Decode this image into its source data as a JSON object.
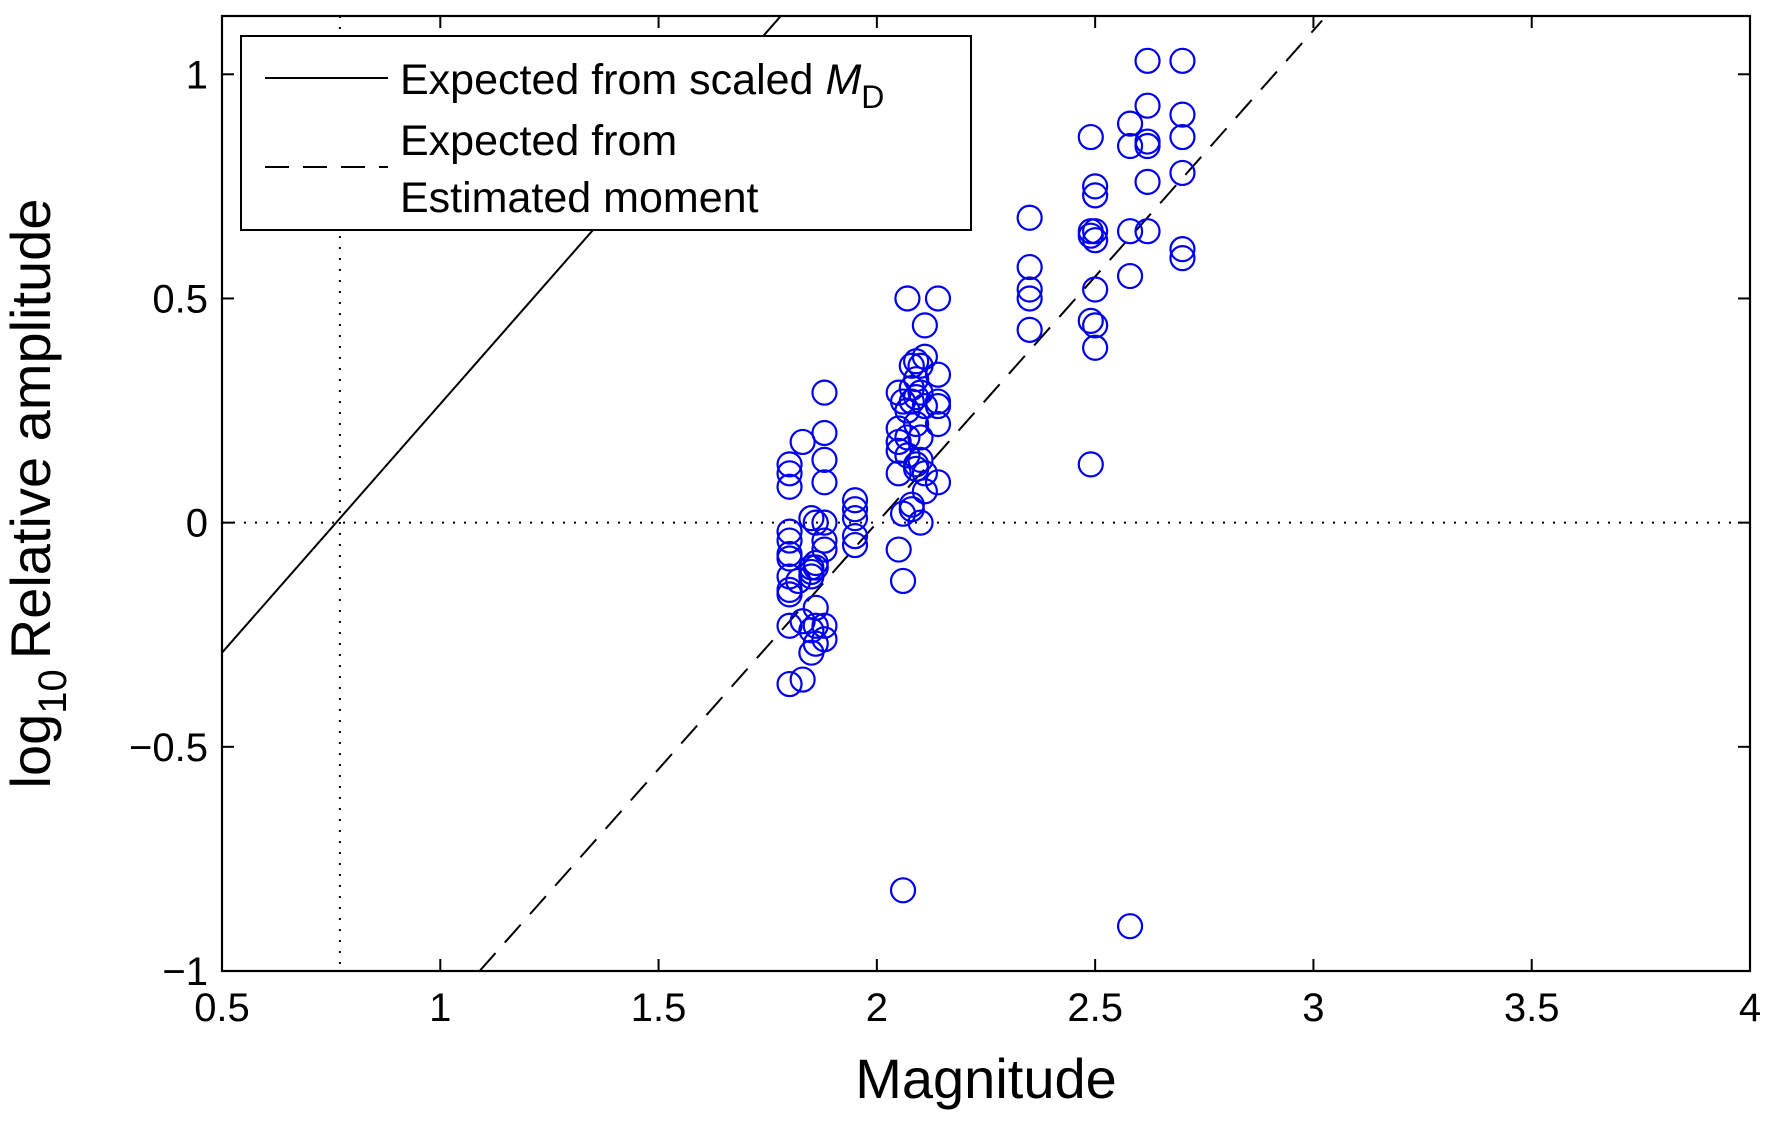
{
  "chart_data": {
    "type": "scatter",
    "xlabel": "Magnitude",
    "ylabel": {
      "prefix": "log",
      "subscript": "10",
      "main": "Relative amplitude"
    },
    "xlim": [
      0.5,
      4
    ],
    "ylim": [
      -1,
      1.13
    ],
    "xticks": [
      0.5,
      1,
      1.5,
      2,
      2.5,
      3,
      3.5,
      4
    ],
    "xtick_labels": [
      "0.5",
      "1",
      "1.5",
      "2",
      "2.5",
      "3",
      "3.5",
      "4"
    ],
    "yticks": [
      -1,
      -0.5,
      0,
      0.5,
      1
    ],
    "ytick_labels": [
      "−1",
      "−0.5",
      "0",
      "0.5",
      "1"
    ],
    "grid": false,
    "legend_position": "top-left",
    "legend": [
      {
        "style": "solid",
        "text": "Expected from scaled ",
        "math": "M",
        "sub": "D"
      },
      {
        "style": "dashed",
        "text": "Expected from",
        "text2": "Estimated moment"
      }
    ],
    "reference_lines": {
      "horizontal_y": 0,
      "vertical_x": 0.77
    },
    "lines": [
      {
        "style": "solid",
        "from": [
          0.5,
          -0.29
        ],
        "to": [
          1.78,
          1.13
        ]
      },
      {
        "style": "dashed",
        "from": [
          1.09,
          -1.0
        ],
        "to": [
          3.02,
          1.12
        ]
      }
    ],
    "points": [
      [
        1.8,
        0.13
      ],
      [
        1.8,
        0.11
      ],
      [
        1.8,
        0.08
      ],
      [
        1.8,
        -0.02
      ],
      [
        1.8,
        -0.04
      ],
      [
        1.8,
        -0.07
      ],
      [
        1.8,
        -0.08
      ],
      [
        1.8,
        -0.12
      ],
      [
        1.8,
        -0.15
      ],
      [
        1.8,
        -0.16
      ],
      [
        1.8,
        -0.23
      ],
      [
        1.8,
        -0.36
      ],
      [
        1.82,
        -0.13
      ],
      [
        1.83,
        0.18
      ],
      [
        1.83,
        -0.22
      ],
      [
        1.83,
        -0.35
      ],
      [
        1.85,
        0.01
      ],
      [
        1.85,
        -0.1
      ],
      [
        1.85,
        -0.11
      ],
      [
        1.85,
        -0.12
      ],
      [
        1.85,
        -0.24
      ],
      [
        1.85,
        -0.29
      ],
      [
        1.86,
        0.0
      ],
      [
        1.86,
        -0.09
      ],
      [
        1.86,
        -0.1
      ],
      [
        1.86,
        -0.19
      ],
      [
        1.86,
        -0.23
      ],
      [
        1.86,
        -0.27
      ],
      [
        1.88,
        0.29
      ],
      [
        1.88,
        0.2
      ],
      [
        1.88,
        0.14
      ],
      [
        1.88,
        0.09
      ],
      [
        1.88,
        0.0
      ],
      [
        1.88,
        -0.04
      ],
      [
        1.88,
        -0.06
      ],
      [
        1.88,
        -0.23
      ],
      [
        1.88,
        -0.26
      ],
      [
        1.95,
        0.05
      ],
      [
        1.95,
        0.03
      ],
      [
        1.95,
        0.01
      ],
      [
        1.95,
        -0.03
      ],
      [
        1.95,
        -0.05
      ],
      [
        2.05,
        0.29
      ],
      [
        2.05,
        0.21
      ],
      [
        2.05,
        0.18
      ],
      [
        2.05,
        0.16
      ],
      [
        2.05,
        0.11
      ],
      [
        2.05,
        -0.06
      ],
      [
        2.06,
        0.27
      ],
      [
        2.06,
        0.02
      ],
      [
        2.06,
        -0.13
      ],
      [
        2.06,
        -0.82
      ],
      [
        2.07,
        0.5
      ],
      [
        2.07,
        0.25
      ],
      [
        2.07,
        0.19
      ],
      [
        2.07,
        0.15
      ],
      [
        2.08,
        0.35
      ],
      [
        2.08,
        0.3
      ],
      [
        2.08,
        0.27
      ],
      [
        2.08,
        0.04
      ],
      [
        2.08,
        0.03
      ],
      [
        2.09,
        0.36
      ],
      [
        2.09,
        0.32
      ],
      [
        2.09,
        0.28
      ],
      [
        2.09,
        0.22
      ],
      [
        2.09,
        0.13
      ],
      [
        2.09,
        0.12
      ],
      [
        2.1,
        0.35
      ],
      [
        2.1,
        0.29
      ],
      [
        2.1,
        0.19
      ],
      [
        2.1,
        0.14
      ],
      [
        2.1,
        0.0
      ],
      [
        2.11,
        0.44
      ],
      [
        2.11,
        0.37
      ],
      [
        2.11,
        0.26
      ],
      [
        2.11,
        0.11
      ],
      [
        2.11,
        0.07
      ],
      [
        2.14,
        0.5
      ],
      [
        2.14,
        0.33
      ],
      [
        2.14,
        0.27
      ],
      [
        2.14,
        0.26
      ],
      [
        2.14,
        0.22
      ],
      [
        2.14,
        0.09
      ],
      [
        2.35,
        0.68
      ],
      [
        2.35,
        0.57
      ],
      [
        2.35,
        0.52
      ],
      [
        2.35,
        0.5
      ],
      [
        2.35,
        0.43
      ],
      [
        2.49,
        0.86
      ],
      [
        2.49,
        0.65
      ],
      [
        2.49,
        0.64
      ],
      [
        2.49,
        0.45
      ],
      [
        2.49,
        0.13
      ],
      [
        2.5,
        0.75
      ],
      [
        2.5,
        0.73
      ],
      [
        2.5,
        0.65
      ],
      [
        2.5,
        0.63
      ],
      [
        2.5,
        0.52
      ],
      [
        2.5,
        0.44
      ],
      [
        2.5,
        0.39
      ],
      [
        2.58,
        0.89
      ],
      [
        2.58,
        0.84
      ],
      [
        2.58,
        0.65
      ],
      [
        2.58,
        0.55
      ],
      [
        2.58,
        -0.9
      ],
      [
        2.62,
        1.03
      ],
      [
        2.62,
        0.93
      ],
      [
        2.62,
        0.85
      ],
      [
        2.62,
        0.84
      ],
      [
        2.62,
        0.76
      ],
      [
        2.62,
        0.65
      ],
      [
        2.7,
        1.03
      ],
      [
        2.7,
        0.91
      ],
      [
        2.7,
        0.86
      ],
      [
        2.7,
        0.78
      ],
      [
        2.7,
        0.61
      ],
      [
        2.7,
        0.59
      ]
    ],
    "point_color": "#0000ee",
    "line_color": "#000000"
  }
}
